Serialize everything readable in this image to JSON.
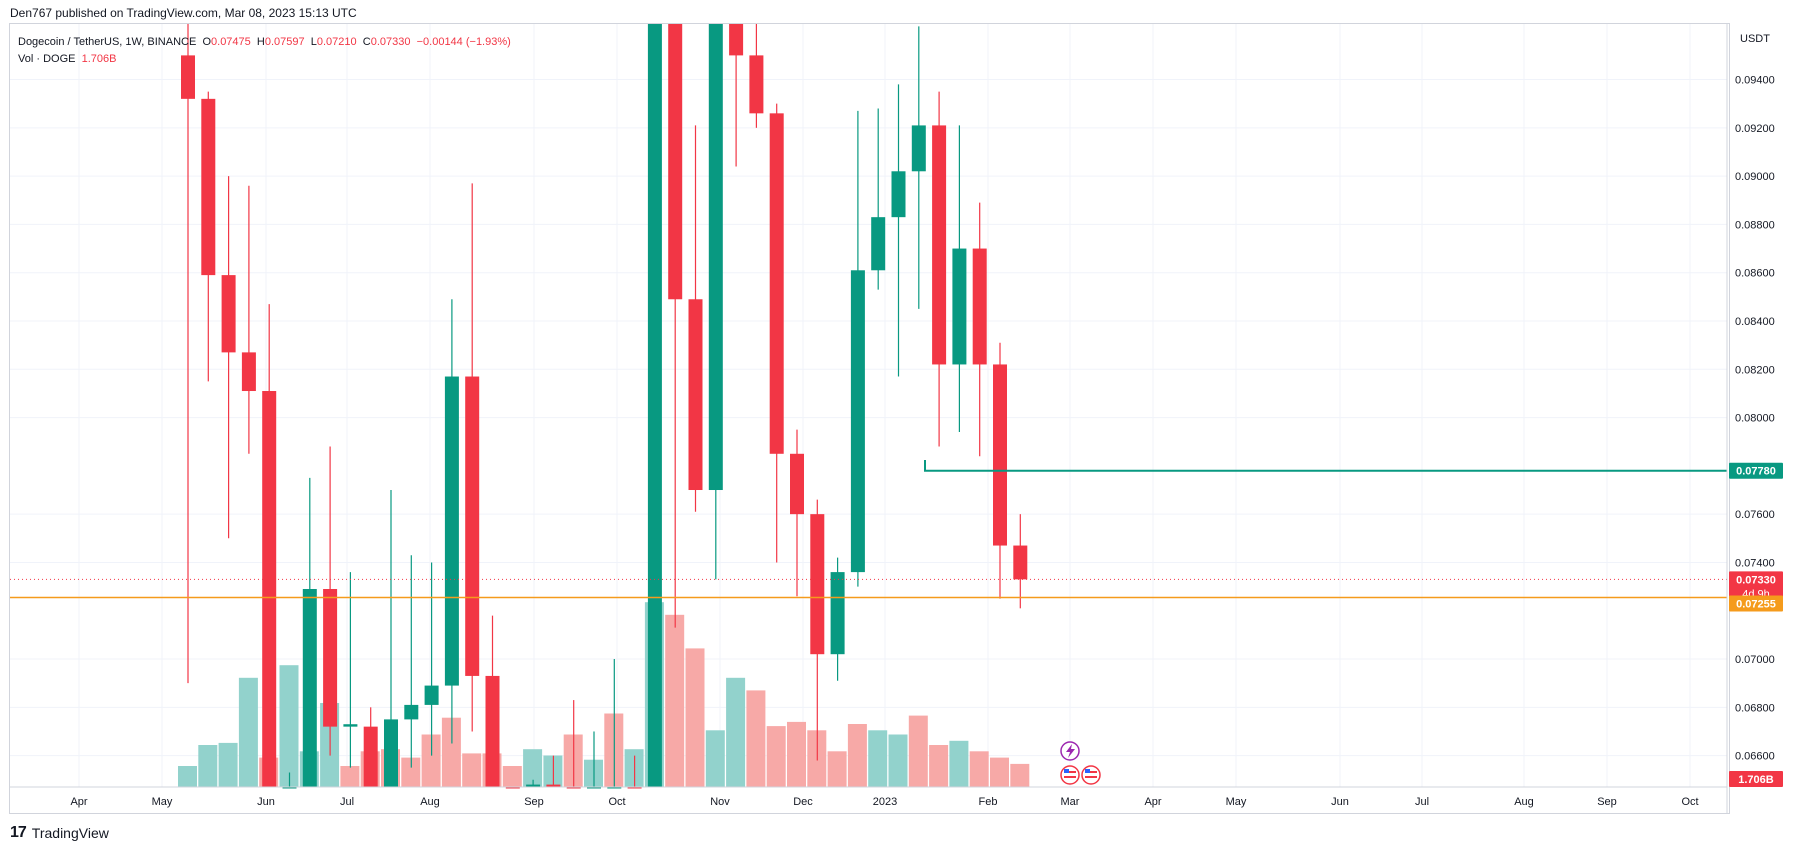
{
  "header": {
    "published": "Den767 published on TradingView.com, Mar 08, 2023 15:13 UTC"
  },
  "legend": {
    "symbol": "Dogecoin / TetherUS, 1W, BINANCE",
    "o_label": "O",
    "o": "0.07475",
    "h_label": "H",
    "h": "0.07597",
    "l_label": "L",
    "l": "0.07210",
    "c_label": "C",
    "c": "0.07330",
    "change": "−0.00144 (−1.93%)",
    "vol_label": "Vol · DOGE",
    "vol": "1.706B"
  },
  "footer": {
    "brand": "TradingView"
  },
  "colors": {
    "up": "#089981",
    "down": "#f23645",
    "up_vol": "#92d2cc",
    "down_vol": "#f7a9a7",
    "support": "#f59b1c",
    "grid": "#f0f3fa"
  },
  "chart_data": {
    "type": "candlestick",
    "symbol": "DOGEUSDT",
    "timeframe": "1W",
    "currency": "USDT",
    "y_axis": {
      "ticks": [
        "0.09400",
        "0.09200",
        "0.09000",
        "0.08800",
        "0.08600",
        "0.08400",
        "0.08200",
        "0.08000",
        "0.07600",
        "0.07400",
        "0.07000",
        "0.06800",
        "0.06600"
      ],
      "ylim": [
        0.0647,
        0.0963
      ]
    },
    "x_axis": {
      "ticks": [
        "Apr",
        "May",
        "Jun",
        "Jul",
        "Aug",
        "Sep",
        "Oct",
        "Nov",
        "Dec",
        "2023",
        "Feb",
        "Mar",
        "Apr",
        "May",
        "Jun",
        "Jul",
        "Aug",
        "Sep",
        "Oct"
      ]
    },
    "price_labels": {
      "resistance": "0.07780",
      "last_price": "0.07330",
      "countdown": "4d 9h",
      "support": "0.07255",
      "volume": "1.706B"
    },
    "levels": {
      "resistance": 0.0778,
      "support": 0.07255,
      "last": 0.0733
    },
    "candles": [
      {
        "x": 0,
        "o": 0.095,
        "h": 0.099,
        "l": 0.069,
        "c": 0.0932
      },
      {
        "x": 1,
        "o": 0.0932,
        "h": 0.0935,
        "l": 0.0815,
        "c": 0.0859
      },
      {
        "x": 2,
        "o": 0.0859,
        "h": 0.09,
        "l": 0.075,
        "c": 0.0827
      },
      {
        "x": 3,
        "o": 0.0827,
        "h": 0.0896,
        "l": 0.0785,
        "c": 0.0811
      },
      {
        "x": 4,
        "o": 0.0811,
        "h": 0.0847,
        "l": 0.064,
        "c": 0.064
      },
      {
        "x": 5,
        "o": 0.064,
        "h": 0.0653,
        "l": 0.0635,
        "c": 0.064
      },
      {
        "x": 6,
        "o": 0.064,
        "h": 0.0775,
        "l": 0.063,
        "c": 0.0729
      },
      {
        "x": 7,
        "o": 0.0729,
        "h": 0.0788,
        "l": 0.066,
        "c": 0.0672
      },
      {
        "x": 8,
        "o": 0.0672,
        "h": 0.0736,
        "l": 0.0655,
        "c": 0.0673
      },
      {
        "x": 9,
        "o": 0.0672,
        "h": 0.068,
        "l": 0.062,
        "c": 0.064
      },
      {
        "x": 10,
        "o": 0.064,
        "h": 0.077,
        "l": 0.0625,
        "c": 0.0675
      },
      {
        "x": 11,
        "o": 0.0675,
        "h": 0.0743,
        "l": 0.0655,
        "c": 0.0681
      },
      {
        "x": 12,
        "o": 0.0681,
        "h": 0.074,
        "l": 0.066,
        "c": 0.0689
      },
      {
        "x": 13,
        "o": 0.0689,
        "h": 0.0849,
        "l": 0.0665,
        "c": 0.0817
      },
      {
        "x": 14,
        "o": 0.0817,
        "h": 0.0897,
        "l": 0.067,
        "c": 0.0693
      },
      {
        "x": 15,
        "o": 0.0693,
        "h": 0.0718,
        "l": 0.062,
        "c": 0.0625
      },
      {
        "x": 16,
        "o": 0.0625,
        "h": 0.064,
        "l": 0.0615,
        "c": 0.062
      },
      {
        "x": 17,
        "o": 0.062,
        "h": 0.065,
        "l": 0.0615,
        "c": 0.0648
      },
      {
        "x": 18,
        "o": 0.0648,
        "h": 0.066,
        "l": 0.064,
        "c": 0.0645
      },
      {
        "x": 19,
        "o": 0.0645,
        "h": 0.0683,
        "l": 0.064,
        "c": 0.064
      },
      {
        "x": 20,
        "o": 0.064,
        "h": 0.067,
        "l": 0.063,
        "c": 0.0642
      },
      {
        "x": 21,
        "o": 0.0642,
        "h": 0.07,
        "l": 0.064,
        "c": 0.0644
      },
      {
        "x": 22,
        "o": 0.0644,
        "h": 0.066,
        "l": 0.0635,
        "c": 0.064
      },
      {
        "x": 23,
        "o": 0.064,
        "h": 0.1,
        "l": 0.064,
        "c": 0.1
      },
      {
        "x": 24,
        "o": 0.1,
        "h": 0.1,
        "l": 0.0713,
        "c": 0.0849
      },
      {
        "x": 25,
        "o": 0.0849,
        "h": 0.0921,
        "l": 0.0761,
        "c": 0.077
      },
      {
        "x": 26,
        "o": 0.077,
        "h": 0.1,
        "l": 0.0733,
        "c": 0.1
      },
      {
        "x": 27,
        "o": 0.1,
        "h": 0.1,
        "l": 0.0904,
        "c": 0.095
      },
      {
        "x": 28,
        "o": 0.095,
        "h": 0.099,
        "l": 0.092,
        "c": 0.0926
      },
      {
        "x": 29,
        "o": 0.0926,
        "h": 0.093,
        "l": 0.074,
        "c": 0.0785
      },
      {
        "x": 30,
        "o": 0.0785,
        "h": 0.0795,
        "l": 0.0726,
        "c": 0.076
      },
      {
        "x": 31,
        "o": 0.076,
        "h": 0.0766,
        "l": 0.0658,
        "c": 0.0702
      },
      {
        "x": 32,
        "o": 0.0702,
        "h": 0.0742,
        "l": 0.0691,
        "c": 0.0736
      },
      {
        "x": 33,
        "o": 0.0736,
        "h": 0.0927,
        "l": 0.073,
        "c": 0.0861
      },
      {
        "x": 34,
        "o": 0.0861,
        "h": 0.0928,
        "l": 0.0853,
        "c": 0.0883
      },
      {
        "x": 35,
        "o": 0.0883,
        "h": 0.0938,
        "l": 0.0817,
        "c": 0.0902
      },
      {
        "x": 36,
        "o": 0.0902,
        "h": 0.0962,
        "l": 0.0845,
        "c": 0.0921
      },
      {
        "x": 37,
        "o": 0.0921,
        "h": 0.0935,
        "l": 0.0788,
        "c": 0.0822
      },
      {
        "x": 38,
        "o": 0.0822,
        "h": 0.0921,
        "l": 0.0794,
        "c": 0.087
      },
      {
        "x": 39,
        "o": 0.087,
        "h": 0.0889,
        "l": 0.0784,
        "c": 0.0822
      },
      {
        "x": 40,
        "o": 0.0822,
        "h": 0.0831,
        "l": 0.0725,
        "c": 0.0747
      },
      {
        "x": 41,
        "o": 0.0747,
        "h": 0.076,
        "l": 0.0721,
        "c": 0.0733
      }
    ],
    "volume_direction": [
      "up",
      "up",
      "up",
      "up",
      "down",
      "up",
      "up",
      "up",
      "down",
      "down",
      "down",
      "down",
      "down",
      "down",
      "down",
      "down",
      "down",
      "up",
      "up",
      "down",
      "up",
      "down",
      "up",
      "up",
      "down",
      "down",
      "up",
      "up",
      "down",
      "down",
      "down",
      "down",
      "down",
      "down",
      "up",
      "up",
      "down",
      "down",
      "up",
      "down",
      "down",
      "down"
    ],
    "volume_fraction": [
      0.1,
      0.2,
      0.21,
      0.52,
      0.14,
      0.58,
      0.17,
      0.4,
      0.1,
      0.17,
      0.18,
      0.14,
      0.25,
      0.33,
      0.16,
      0.16,
      0.1,
      0.18,
      0.15,
      0.25,
      0.13,
      0.35,
      0.18,
      0.88,
      0.82,
      0.66,
      0.27,
      0.52,
      0.46,
      0.29,
      0.31,
      0.27,
      0.17,
      0.3,
      0.27,
      0.25,
      0.34,
      0.2,
      0.22,
      0.17,
      0.14,
      0.11
    ]
  }
}
